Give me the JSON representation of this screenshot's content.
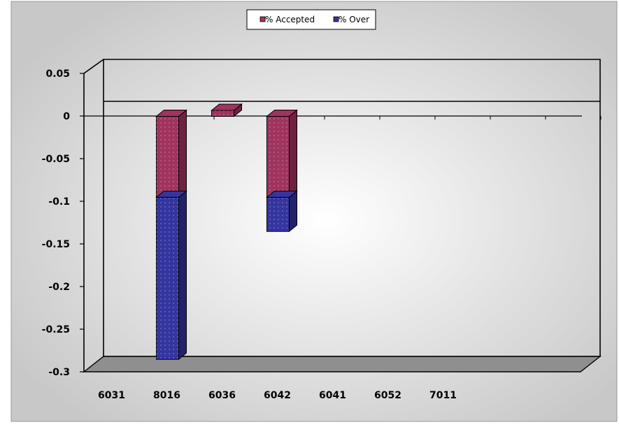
{
  "chart_data": {
    "type": "bar",
    "stacked": true,
    "three_d": true,
    "categories": [
      "6031",
      "8016",
      "6036",
      "6042",
      "6041",
      "6052",
      "7011"
    ],
    "series": [
      {
        "name": "% Accepted",
        "values": [
          0,
          -0.095,
          0.007,
          -0.095,
          0,
          0,
          0
        ]
      },
      {
        "name": "% Over",
        "values": [
          0,
          -0.19,
          0,
          -0.04,
          0,
          0,
          0
        ]
      }
    ],
    "yticks": [
      "0.05",
      "0",
      "-0.05",
      "-0.1",
      "-0.15",
      "-0.2",
      "-0.25",
      "-0.3"
    ],
    "ylim": [
      -0.3,
      0.05
    ],
    "legend_position": "top",
    "grid": false,
    "colors": {
      "accepted": "#a0335f",
      "accepted_dark": "#6e2242",
      "over": "#3535a0",
      "over_dark": "#22226a",
      "floor": "#8f8f8f",
      "plot_edge": "#000000",
      "background_light": "#ffffff",
      "background_dark": "#c8c8c8"
    }
  }
}
